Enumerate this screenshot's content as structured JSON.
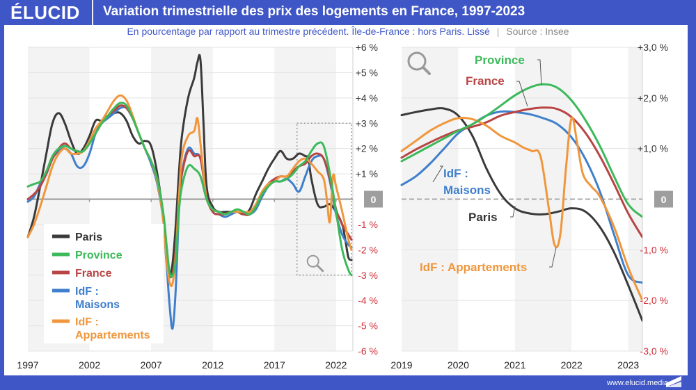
{
  "header": {
    "logo": "ÉLUCID",
    "title": "Variation trimestrielle des prix des logements en France, 1997-2023",
    "subtitle": "En pourcentage par rapport au trimestre précédent. Île-de-France : hors Paris. Lissé",
    "subtitle_separator": "|",
    "source": "Source : Insee"
  },
  "footer": {
    "url": "www.elucid.media"
  },
  "colors": {
    "brand": "#3f56c6",
    "Paris": "#3a3a3a",
    "Province": "#3cb95a",
    "France": "#b94444",
    "IdF_Maisons": "#3f7fcc",
    "IdF_Appartements": "#f0963c",
    "negative_tick": "#d0303a",
    "positive_tick": "#333333"
  },
  "chart_data": [
    {
      "type": "line",
      "title": "Variation trimestrielle des prix des logements en France, 1997-2023",
      "xlabel": "",
      "ylabel": "",
      "xlim": [
        1997,
        2023.25
      ],
      "ylim": [
        -6,
        6
      ],
      "x_ticks": [
        "1997",
        "2002",
        "2007",
        "2012",
        "2017",
        "2022"
      ],
      "x_tick_values": [
        1997,
        2002,
        2007,
        2012,
        2017,
        2022
      ],
      "y_ticks": [
        "+6 %",
        "+5 %",
        "+4 %",
        "+3 %",
        "+2 %",
        "+1 %",
        "0",
        "-1 %",
        "-2 %",
        "-3 %",
        "-4 %",
        "-5 %",
        "-6 %"
      ],
      "y_tick_values": [
        6,
        5,
        4,
        3,
        2,
        1,
        0,
        -1,
        -2,
        -3,
        -4,
        -5,
        -6
      ],
      "grid": true,
      "legend": {
        "placement": "bottom-left",
        "entries": [
          "Paris",
          "Province",
          "France",
          "IdF : Maisons",
          "IdF : Appartements"
        ]
      },
      "zoom_box": {
        "x_range": [
          2019,
          2023.25
        ],
        "y_range": [
          -3,
          3
        ]
      },
      "series": [
        {
          "name": "Paris",
          "key": "Paris",
          "x": [
            1997,
            1997.5,
            1998,
            1998.5,
            1999,
            1999.5,
            2000,
            2000.5,
            2001,
            2001.5,
            2002,
            2002.5,
            2003,
            2003.5,
            2004,
            2004.5,
            2005,
            2005.5,
            2006,
            2006.5,
            2007,
            2007.5,
            2008,
            2008.25,
            2008.5,
            2008.75,
            2009,
            2009.25,
            2009.5,
            2010,
            2010.5,
            2010.75,
            2011,
            2011.25,
            2011.5,
            2012,
            2012.5,
            2013,
            2013.5,
            2014,
            2014.5,
            2015,
            2015.5,
            2016,
            2016.5,
            2017,
            2017.5,
            2018,
            2018.5,
            2019,
            2019.5,
            2019.75,
            2020,
            2020.5,
            2021,
            2021.5,
            2022,
            2022.5,
            2022.75,
            2023,
            2023.25
          ],
          "values": [
            -1.5,
            -0.7,
            0.5,
            1.8,
            3.0,
            3.4,
            3.0,
            2.3,
            1.8,
            2.0,
            2.5,
            3.1,
            3.1,
            3.3,
            3.4,
            3.4,
            3.1,
            2.5,
            2.2,
            2.3,
            2.1,
            1.0,
            -0.8,
            -2.5,
            -3.0,
            -2.5,
            -1.0,
            1.0,
            2.5,
            4.0,
            4.8,
            5.4,
            5.5,
            3.0,
            0.5,
            -0.3,
            -0.5,
            -0.5,
            -0.5,
            -0.5,
            -0.6,
            -0.4,
            0.2,
            0.7,
            1.2,
            1.6,
            1.9,
            1.6,
            1.6,
            1.8,
            1.7,
            1.6,
            0.8,
            -0.2,
            -0.3,
            -0.2,
            -0.5,
            -1.0,
            -1.6,
            -2.3,
            -2.4
          ]
        },
        {
          "name": "Province",
          "key": "Province",
          "x": [
            1997,
            1997.5,
            1998,
            1998.5,
            1999,
            1999.5,
            2000,
            2000.5,
            2001,
            2001.5,
            2002,
            2002.5,
            2003,
            2003.5,
            2004,
            2004.5,
            2005,
            2005.5,
            2006,
            2006.5,
            2007,
            2007.5,
            2008,
            2008.25,
            2008.5,
            2008.75,
            2009,
            2009.25,
            2009.5,
            2010,
            2010.5,
            2011,
            2011.5,
            2012,
            2012.5,
            2013,
            2013.5,
            2014,
            2014.5,
            2015,
            2015.5,
            2016,
            2016.5,
            2017,
            2017.5,
            2018,
            2018.5,
            2019,
            2019.5,
            2020,
            2020.5,
            2021,
            2021.5,
            2022,
            2022.5,
            2023,
            2023.25
          ],
          "values": [
            0.5,
            0.6,
            0.7,
            1.1,
            1.7,
            2.0,
            2.1,
            2.0,
            1.9,
            1.9,
            2.2,
            2.6,
            3.0,
            3.3,
            3.6,
            3.8,
            3.7,
            3.2,
            2.6,
            2.0,
            1.5,
            0.8,
            -0.6,
            -1.8,
            -2.9,
            -3.0,
            -2.4,
            -0.5,
            0.5,
            1.3,
            1.2,
            0.9,
            0.0,
            -0.4,
            -0.5,
            -0.6,
            -0.5,
            -0.4,
            -0.5,
            -0.6,
            -0.3,
            0.2,
            0.5,
            0.7,
            0.7,
            0.8,
            1.0,
            1.3,
            1.5,
            1.9,
            2.2,
            2.1,
            1.0,
            -0.5,
            -2.0,
            -2.8,
            -3.0
          ]
        },
        {
          "name": "France",
          "key": "France",
          "x": [
            1997,
            1997.5,
            1998,
            1998.5,
            1999,
            1999.5,
            2000,
            2000.5,
            2001,
            2001.5,
            2002,
            2002.5,
            2003,
            2003.5,
            2004,
            2004.5,
            2005,
            2005.5,
            2006,
            2006.5,
            2007,
            2007.5,
            2008,
            2008.25,
            2008.5,
            2008.75,
            2009,
            2009.25,
            2009.5,
            2010,
            2010.5,
            2011,
            2011.5,
            2012,
            2012.5,
            2013,
            2013.5,
            2014,
            2014.5,
            2015,
            2015.5,
            2016,
            2016.5,
            2017,
            2017.5,
            2018,
            2018.5,
            2019,
            2019.5,
            2020,
            2020.5,
            2021,
            2021.5,
            2022,
            2022.5,
            2023,
            2023.25
          ],
          "values": [
            0.0,
            0.2,
            0.5,
            1.0,
            1.6,
            2.0,
            2.2,
            2.0,
            1.9,
            1.9,
            2.2,
            2.6,
            3.0,
            3.3,
            3.5,
            3.7,
            3.6,
            3.2,
            2.6,
            2.0,
            1.5,
            0.7,
            -0.8,
            -2.0,
            -3.0,
            -2.9,
            -2.0,
            0.0,
            1.0,
            1.9,
            1.7,
            1.6,
            0.1,
            -0.5,
            -0.6,
            -0.6,
            -0.5,
            -0.5,
            -0.6,
            -0.6,
            -0.3,
            0.2,
            0.6,
            0.8,
            0.9,
            0.9,
            1.1,
            1.3,
            1.4,
            1.7,
            1.8,
            1.6,
            0.8,
            -0.4,
            -1.0,
            -1.4,
            -1.6
          ]
        },
        {
          "name": "IdF : Maisons",
          "key": "IdF_Maisons",
          "x": [
            1997,
            1997.5,
            1998,
            1998.5,
            1999,
            1999.5,
            2000,
            2000.5,
            2001,
            2001.5,
            2002,
            2002.5,
            2003,
            2003.5,
            2004,
            2004.5,
            2005,
            2005.5,
            2006,
            2006.5,
            2007,
            2007.5,
            2008,
            2008.25,
            2008.5,
            2008.75,
            2009,
            2009.25,
            2009.5,
            2010,
            2010.5,
            2011,
            2011.5,
            2012,
            2012.5,
            2013,
            2013.5,
            2014,
            2014.5,
            2015,
            2015.5,
            2016,
            2016.5,
            2017,
            2017.5,
            2018,
            2018.5,
            2019,
            2019.5,
            2020,
            2020.5,
            2021,
            2021.5,
            2022,
            2022.5,
            2023,
            2023.25
          ],
          "values": [
            -0.1,
            0.1,
            0.6,
            1.0,
            1.6,
            1.9,
            2.0,
            1.8,
            1.3,
            1.3,
            1.8,
            2.6,
            3.0,
            3.2,
            3.4,
            3.6,
            3.6,
            3.2,
            2.6,
            2.0,
            1.4,
            0.6,
            -0.9,
            -2.5,
            -4.2,
            -5.1,
            -3.5,
            -0.5,
            1.0,
            2.0,
            1.8,
            1.6,
            0.1,
            -0.5,
            -0.6,
            -0.7,
            -0.6,
            -0.5,
            -0.6,
            -0.6,
            -0.4,
            0.1,
            0.5,
            0.7,
            0.7,
            0.8,
            0.6,
            0.3,
            0.9,
            1.5,
            1.7,
            1.6,
            0.7,
            -0.6,
            -1.4,
            -1.8,
            -1.9
          ]
        },
        {
          "name": "IdF : Appartements",
          "key": "IdF_Appartements",
          "x": [
            1997,
            1997.5,
            1998,
            1998.5,
            1999,
            1999.5,
            2000,
            2000.5,
            2001,
            2001.5,
            2002,
            2002.5,
            2003,
            2003.5,
            2004,
            2004.5,
            2005,
            2005.5,
            2006,
            2006.5,
            2007,
            2007.5,
            2008,
            2008.25,
            2008.5,
            2008.75,
            2009,
            2009.25,
            2009.5,
            2010,
            2010.5,
            2010.75,
            2011,
            2011.25,
            2011.5,
            2012,
            2012.5,
            2013,
            2013.5,
            2014,
            2014.5,
            2015,
            2015.5,
            2016,
            2016.5,
            2017,
            2017.5,
            2018,
            2018.5,
            2019,
            2019.5,
            2020,
            2020.5,
            2021,
            2021.25,
            2021.5,
            2021.75,
            2022,
            2022.5,
            2023,
            2023.25
          ],
          "values": [
            -1.5,
            -1.0,
            -0.3,
            0.5,
            1.3,
            1.8,
            2.0,
            1.8,
            1.8,
            1.9,
            2.3,
            2.8,
            3.1,
            3.5,
            3.9,
            4.1,
            3.9,
            3.3,
            2.6,
            2.0,
            1.5,
            0.7,
            -0.9,
            -2.4,
            -3.3,
            -3.3,
            -2.2,
            0.0,
            1.7,
            2.5,
            2.7,
            3.2,
            2.2,
            1.0,
            0.0,
            -0.4,
            -0.5,
            -0.6,
            -0.5,
            -0.5,
            -0.5,
            -0.5,
            -0.2,
            0.3,
            0.6,
            0.7,
            0.9,
            0.9,
            1.2,
            1.5,
            1.6,
            1.4,
            1.1,
            0.8,
            0.0,
            -0.9,
            0.9,
            0.5,
            -0.5,
            -1.6,
            -2.0
          ]
        }
      ]
    },
    {
      "type": "line",
      "title": "Zoom 2019-2023",
      "xlabel": "",
      "ylabel": "",
      "xlim": [
        2019,
        2023.25
      ],
      "ylim": [
        -3,
        3
      ],
      "x_ticks": [
        "2019",
        "2020",
        "2021",
        "2022",
        "2023"
      ],
      "x_tick_values": [
        2019,
        2020,
        2021,
        2022,
        2023
      ],
      "y_ticks": [
        "+3,0 %",
        "+2,0 %",
        "+1,0 %",
        "0",
        "-1,0 %",
        "-2,0 %",
        "-3,0 %"
      ],
      "y_tick_values": [
        3,
        2,
        1,
        0,
        -1,
        -2,
        -3
      ],
      "grid": true,
      "zero_line": "dashed",
      "annotations": [
        "Province",
        "France",
        "IdF : Maisons",
        "Paris",
        "IdF : Appartements"
      ],
      "series": [
        {
          "name": "Paris",
          "key": "Paris",
          "x": [
            2019,
            2019.25,
            2019.5,
            2019.75,
            2020,
            2020.25,
            2020.5,
            2020.75,
            2021,
            2021.25,
            2021.5,
            2021.75,
            2022,
            2022.25,
            2022.5,
            2022.75,
            2023,
            2023.25
          ],
          "values": [
            1.66,
            1.72,
            1.77,
            1.79,
            1.65,
            1.25,
            0.6,
            0.1,
            -0.18,
            -0.28,
            -0.3,
            -0.25,
            -0.18,
            -0.25,
            -0.55,
            -1.05,
            -1.7,
            -2.4
          ]
        },
        {
          "name": "Province",
          "key": "Province",
          "x": [
            2019,
            2019.25,
            2019.5,
            2019.75,
            2020,
            2020.25,
            2020.5,
            2020.75,
            2021,
            2021.25,
            2021.5,
            2021.75,
            2022,
            2022.25,
            2022.5,
            2022.75,
            2023,
            2023.25
          ],
          "values": [
            0.75,
            0.9,
            1.05,
            1.2,
            1.35,
            1.48,
            1.65,
            1.85,
            2.05,
            2.2,
            2.27,
            2.2,
            1.95,
            1.55,
            1.05,
            0.45,
            -0.1,
            -0.35
          ]
        },
        {
          "name": "France",
          "key": "France",
          "x": [
            2019,
            2019.25,
            2019.5,
            2019.75,
            2020,
            2020.25,
            2020.5,
            2020.75,
            2021,
            2021.25,
            2021.5,
            2021.75,
            2022,
            2022.25,
            2022.5,
            2022.75,
            2023,
            2023.25
          ],
          "values": [
            0.82,
            0.98,
            1.12,
            1.25,
            1.36,
            1.43,
            1.52,
            1.65,
            1.72,
            1.78,
            1.81,
            1.78,
            1.62,
            1.3,
            0.85,
            0.3,
            -0.28,
            -0.75
          ]
        },
        {
          "name": "IdF : Maisons",
          "key": "IdF_Maisons",
          "x": [
            2019,
            2019.25,
            2019.5,
            2019.75,
            2020,
            2020.25,
            2020.5,
            2020.75,
            2021,
            2021.25,
            2021.5,
            2021.75,
            2022,
            2022.25,
            2022.5,
            2022.75,
            2023,
            2023.25
          ],
          "values": [
            0.28,
            0.45,
            0.7,
            1.0,
            1.3,
            1.48,
            1.65,
            1.73,
            1.72,
            1.68,
            1.6,
            1.48,
            1.22,
            0.78,
            0.15,
            -0.7,
            -1.5,
            -1.65
          ]
        },
        {
          "name": "IdF : Appartements",
          "key": "IdF_Appartements",
          "x": [
            2019,
            2019.25,
            2019.5,
            2019.75,
            2020,
            2020.25,
            2020.5,
            2020.75,
            2021,
            2021.15,
            2021.3,
            2021.45,
            2021.6,
            2021.7,
            2021.8,
            2021.9,
            2022,
            2022.1,
            2022.2,
            2022.35,
            2022.5,
            2022.75,
            2023,
            2023.25
          ],
          "values": [
            0.95,
            1.15,
            1.35,
            1.5,
            1.6,
            1.58,
            1.45,
            1.25,
            1.12,
            1.02,
            0.95,
            0.85,
            -0.2,
            -0.9,
            -0.7,
            0.6,
            1.6,
            1.1,
            0.5,
            0.25,
            0.05,
            -0.55,
            -1.35,
            -2.0
          ]
        }
      ]
    }
  ]
}
